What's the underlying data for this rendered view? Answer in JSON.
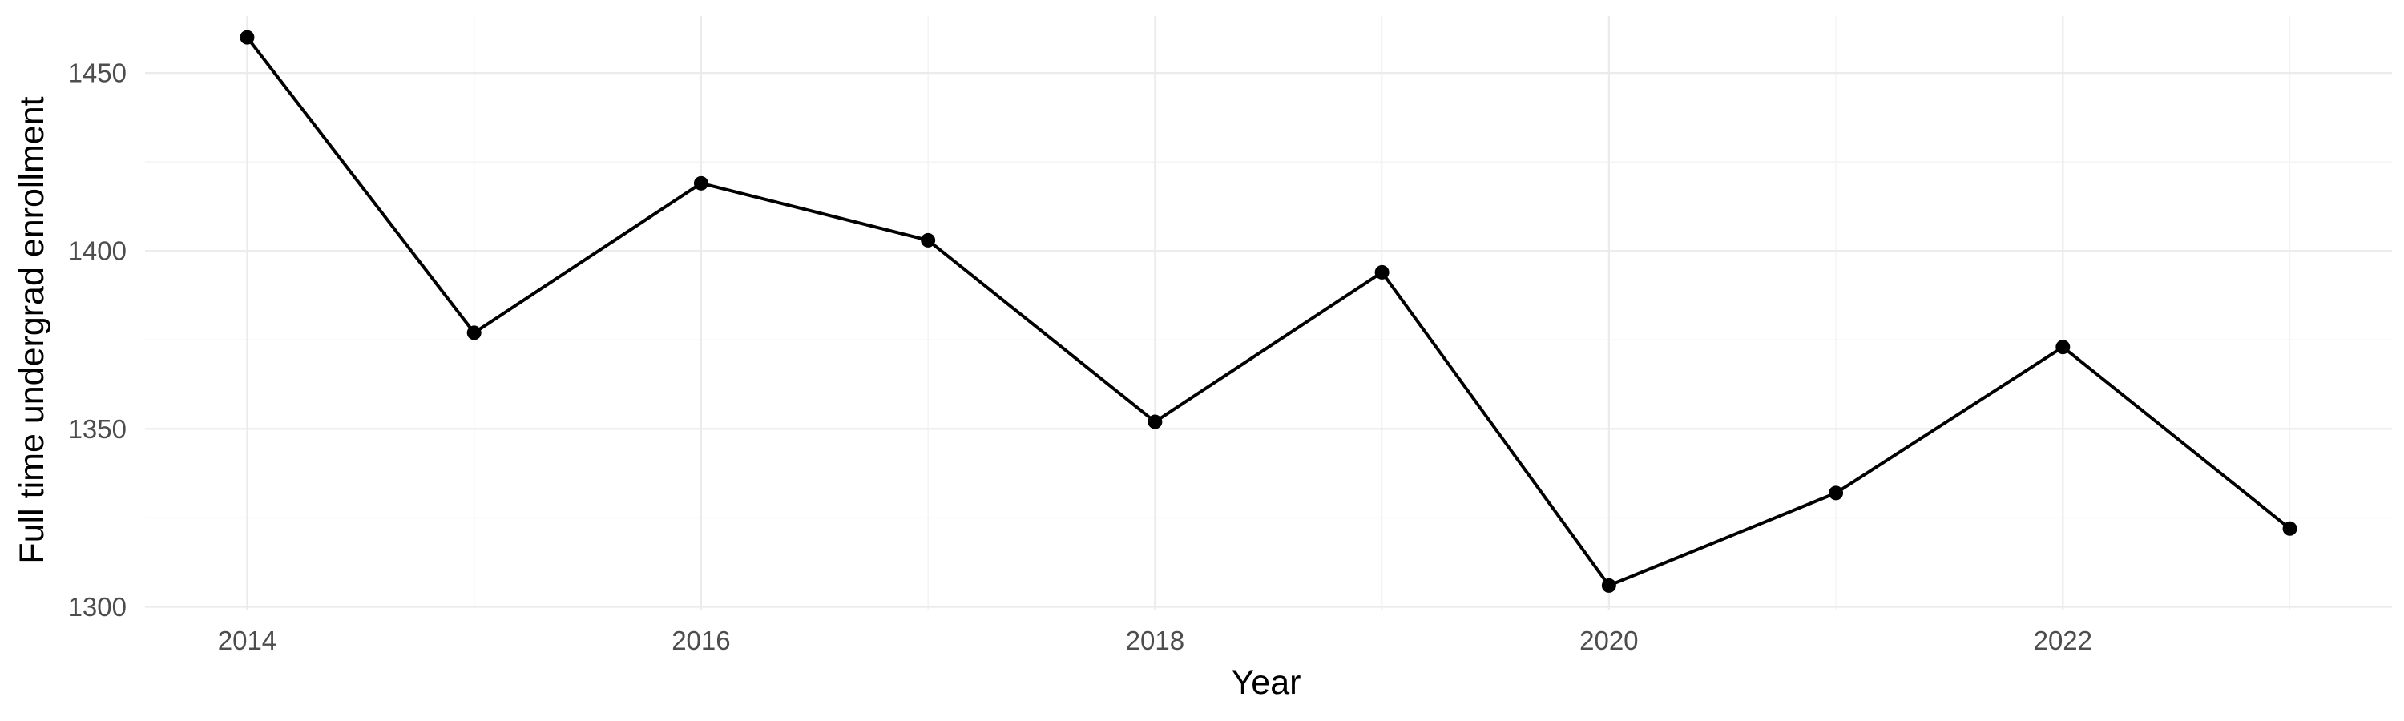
{
  "chart_data": {
    "type": "line",
    "title": "",
    "xlabel": "Year",
    "ylabel": "Full time undergrad enrollment",
    "x": [
      2014,
      2015,
      2016,
      2017,
      2018,
      2019,
      2020,
      2021,
      2022,
      2023
    ],
    "series": [
      {
        "values": [
          1460,
          1377,
          1419,
          1403,
          1352,
          1394,
          1306,
          1332,
          1373,
          1322
        ]
      }
    ],
    "xlim": [
      2013.55,
      2023.45
    ],
    "ylim": [
      1299,
      1466
    ],
    "xticks": [
      2014,
      2016,
      2018,
      2020,
      2022
    ],
    "xtick_labels": [
      "2014",
      "2016",
      "2018",
      "2020",
      "2022"
    ],
    "xminor": [
      2015,
      2017,
      2019,
      2021,
      2023
    ],
    "yticks": [
      1300,
      1350,
      1400,
      1450
    ],
    "ytick_labels": [
      "1300",
      "1350",
      "1400",
      "1450"
    ],
    "yminor": [
      1325,
      1375,
      1425
    ],
    "grid": true,
    "legend": "none",
    "line_color": "#000000",
    "grid_color": "#ebebeb"
  }
}
